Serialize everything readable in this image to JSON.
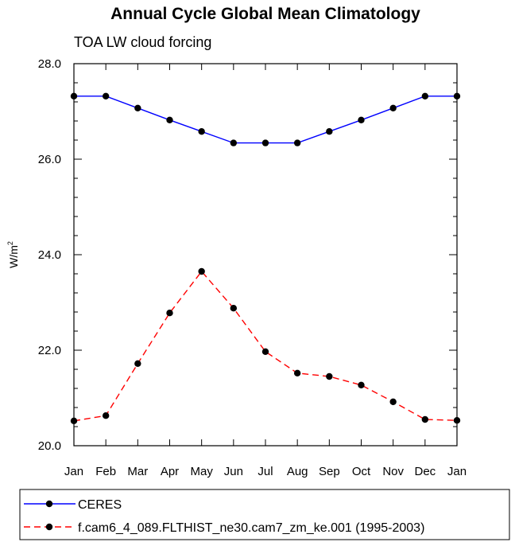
{
  "chart_data": {
    "type": "line",
    "title": "Annual Cycle Global Mean Climatology",
    "subtitle": "TOA LW cloud forcing",
    "ylabel": "W/m",
    "ylabel_sup": "2",
    "xlabel": "",
    "ylim": [
      20.0,
      28.0
    ],
    "yticks": [
      20.0,
      22.0,
      24.0,
      26.0,
      28.0
    ],
    "ytick_labels": [
      "20.0",
      "22.0",
      "24.0",
      "26.0",
      "28.0"
    ],
    "categories": [
      "Jan",
      "Feb",
      "Mar",
      "Apr",
      "May",
      "Jun",
      "Jul",
      "Aug",
      "Sep",
      "Oct",
      "Nov",
      "Dec",
      "Jan"
    ],
    "series": [
      {
        "name": "CERES",
        "color": "#0000ff",
        "dash": "solid",
        "values": [
          27.32,
          27.32,
          27.07,
          26.82,
          26.58,
          26.34,
          26.34,
          26.34,
          26.58,
          26.82,
          27.07,
          27.32,
          27.32
        ]
      },
      {
        "name": "f.cam6_4_089.FLTHIST_ne30.cam7_zm_ke.001 (1995-2003)",
        "color": "#ff0000",
        "dash": "dashed",
        "values": [
          20.52,
          20.63,
          21.72,
          22.78,
          23.65,
          22.88,
          21.97,
          21.52,
          21.45,
          21.27,
          20.92,
          20.55,
          20.53
        ]
      }
    ],
    "grid": false,
    "legend_position": "bottom"
  }
}
